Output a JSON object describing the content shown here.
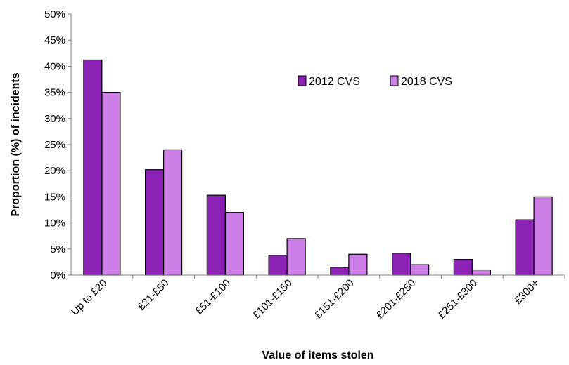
{
  "chart_data": {
    "type": "bar",
    "title": "",
    "xlabel": "Value of items stolen",
    "ylabel": "Proportion (%) of incidents",
    "ylim": [
      0,
      50
    ],
    "ytick_step": 5,
    "ytick_suffix": "%",
    "grid": false,
    "legend_position": "top-right",
    "categories": [
      "Up to £20",
      "£21-£50",
      "£51-£100",
      "£101-£150",
      "£151-£200",
      "£201-£250",
      "£251-£300",
      "£300+"
    ],
    "series": [
      {
        "name": "2012 CVS",
        "color": "#8B22B5",
        "values": [
          41.2,
          20.2,
          15.3,
          3.8,
          1.5,
          4.2,
          3.0,
          10.6
        ]
      },
      {
        "name": "2018 CVS",
        "color": "#CC80E6",
        "values": [
          35.0,
          24.0,
          12.0,
          7.0,
          4.0,
          2.0,
          1.0,
          15.0
        ]
      }
    ]
  }
}
